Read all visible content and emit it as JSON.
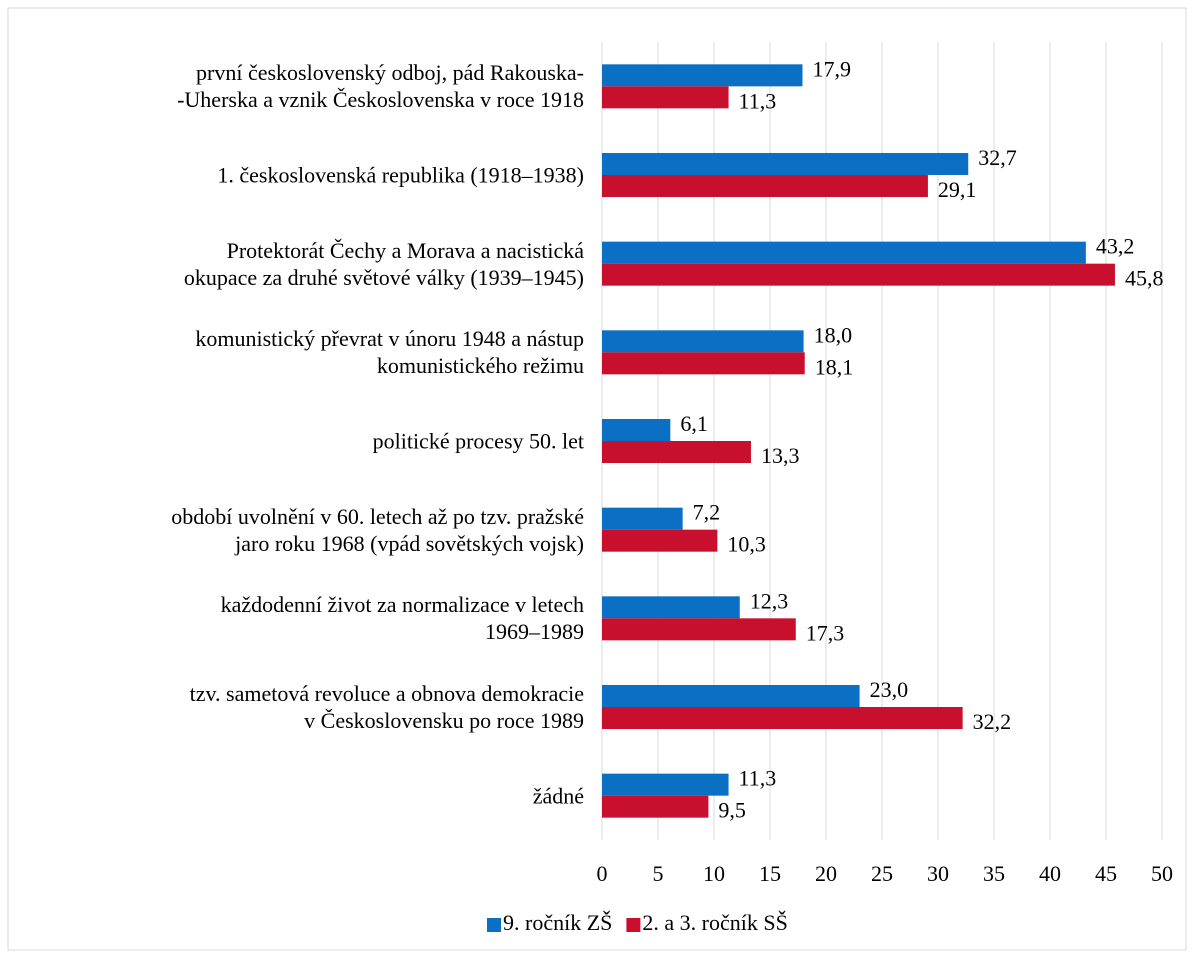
{
  "chart_data": {
    "type": "bar",
    "orientation": "horizontal",
    "categories": [
      "první československý odboj, pád Rakouska-\n-Uherska a vznik Československa v roce 1918",
      "1. československá republika (1918–1938)",
      "Protektorát Čechy a Morava a nacistická\nokupace za druhé světové války (1939–1945)",
      "komunistický převrat v únoru 1948 a nástup\nkomunistického režimu",
      "politické procesy 50. let",
      "období uvolnění v 60. letech až po tzv. pražské\njaro roku 1968 (vpád sovětských vojsk)",
      "každodenní život za normalizace v letech\n1969–1989",
      "tzv. sametová revoluce a obnova demokracie\nv Československu po roce 1989",
      "žádné"
    ],
    "series": [
      {
        "name": "9. ročník ZŠ",
        "color": "#0b6fc4",
        "values": [
          17.9,
          32.7,
          43.2,
          18.0,
          6.1,
          7.2,
          12.3,
          23.0,
          11.3
        ],
        "value_labels": [
          "17,9",
          "32,7",
          "43,2",
          "18,0",
          "6,1",
          "7,2",
          "12,3",
          "23,0",
          "11,3"
        ]
      },
      {
        "name": "2. a 3. ročník SŠ",
        "color": "#c8102e",
        "values": [
          11.3,
          29.1,
          45.8,
          18.1,
          13.3,
          10.3,
          17.3,
          32.2,
          9.5
        ],
        "value_labels": [
          "11,3",
          "29,1",
          "45,8",
          "18,1",
          "13,3",
          "10,3",
          "17,3",
          "32,2",
          "9,5"
        ]
      }
    ],
    "xlim": [
      0,
      50
    ],
    "xticks": [
      0,
      5,
      10,
      15,
      20,
      25,
      30,
      35,
      40,
      45,
      50
    ],
    "grid": true,
    "legend": "bottom"
  }
}
